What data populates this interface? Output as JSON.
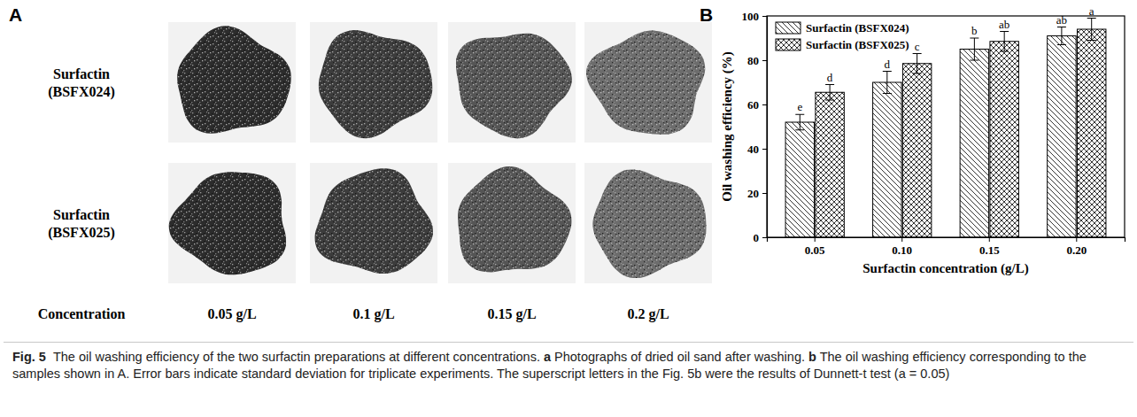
{
  "panel_a": {
    "letter": "A",
    "rows": [
      "Surfactin (BSFX024)",
      "Surfactin (BSFX025)"
    ],
    "column_title": "Concentration",
    "columns": [
      "0.05 g/L",
      "0.1 g/L",
      "0.15 g/L",
      "0.2 g/L"
    ]
  },
  "chart_data": {
    "type": "bar",
    "panel_label": "B",
    "x_label": "Surfactin concentration (g/L)",
    "y_label": "Oil washing efficiency (%)",
    "categories": [
      "0.05",
      "0.10",
      "0.15",
      "0.20"
    ],
    "series": [
      {
        "name": "Surfactin (BSFX024)",
        "color": "#000000",
        "values": [
          52,
          70,
          85,
          91
        ],
        "error": [
          3.5,
          5,
          5,
          4
        ],
        "letters": [
          "e",
          "d",
          "b",
          "ab"
        ]
      },
      {
        "name": "Surfactin (BSFX025)",
        "color": "#000000",
        "values": [
          65.5,
          78.5,
          88.5,
          94
        ],
        "error": [
          3.5,
          4.5,
          4.5,
          5
        ],
        "letters": [
          "d",
          "c",
          "ab",
          "a"
        ]
      }
    ],
    "ylim": [
      0,
      100
    ],
    "yticks": [
      0,
      20,
      40,
      60,
      80,
      100
    ],
    "grid": false,
    "legend": "top-left"
  },
  "caption": {
    "label": "Fig. 5",
    "intro": "The oil washing efficiency of the two surfactin preparations at different concentrations.",
    "parts": [
      {
        "letter": "a",
        "text": "Photographs of dried oil sand after washing."
      },
      {
        "letter": "b",
        "text": "The oil washing efficiency corresponding to the samples shown in A. Error bars indicate standard deviation for triplicate experiments. The superscript letters in the Fig. 5b were the results of Dunnett-t test (a = 0.05)"
      }
    ]
  }
}
